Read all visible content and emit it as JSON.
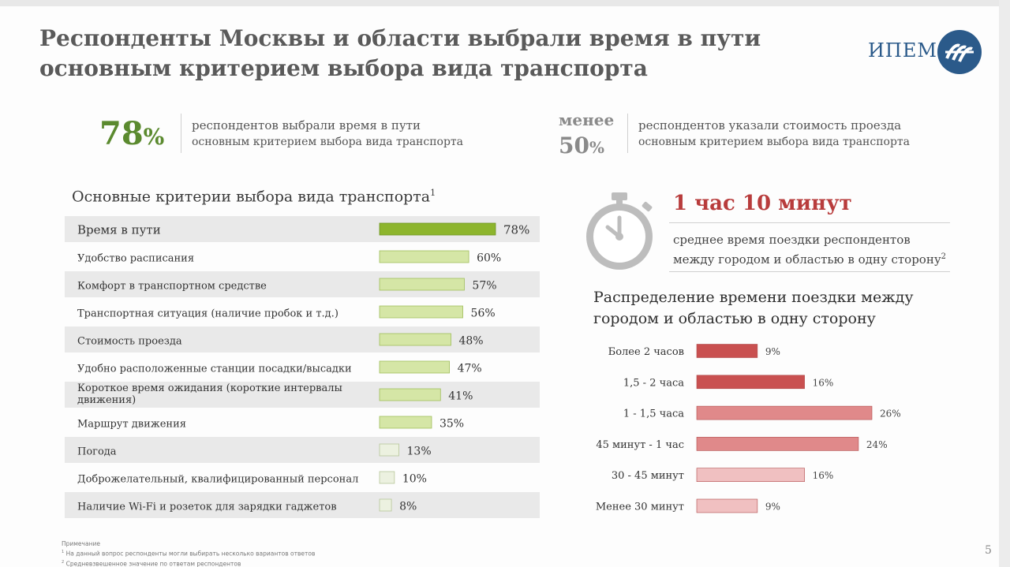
{
  "title": {
    "line1": "Респонденты Москвы и области выбрали время в пути",
    "line2": "основным критерием выбора вида транспорта"
  },
  "logo": {
    "text": "ИПЕМ"
  },
  "kpi1": {
    "value": "78",
    "unit": "%",
    "text_line1": "респондентов выбрали время в пути",
    "text_line2": "основным критерием выбора вида транспорта"
  },
  "kpi2": {
    "prefix": "менее",
    "value": "50",
    "unit": "%",
    "text_line1": "респондентов указали стоимость проезда",
    "text_line2": "основным критерием выбора вида транспорта"
  },
  "left_chart_title": {
    "text": "Основные критерии выбора вида транспорта",
    "sup": "1"
  },
  "travel_time": {
    "value": "1 час 10 минут",
    "desc_line1": "среднее время поездки респондентов",
    "desc_line2": "между городом и областью в одну сторону",
    "desc_sup": "2"
  },
  "right_chart_title": {
    "line1": "Распределение времени поездки между",
    "line2": "городом и областью в одну сторону"
  },
  "chart_data": [
    {
      "type": "bar",
      "orientation": "horizontal",
      "title": "Основные критерии выбора вида транспорта",
      "categories": [
        "Время в пути",
        "Удобство расписания",
        "Комфорт в транспортном средстве",
        "Транспортная ситуация (наличие пробок и т.д.)",
        "Стоимость проезда",
        "Удобно расположенные станции посадки/высадки",
        "Короткое время ожидания (короткие интервалы|движения)",
        "Маршрут движения",
        "Погода",
        "Доброжелательный, квалифицированный персонал",
        "Наличие Wi-Fi и розеток для зарядки гаджетов"
      ],
      "values": [
        78,
        60,
        57,
        56,
        48,
        47,
        41,
        35,
        13,
        10,
        8
      ],
      "labels": [
        "78%",
        "60%",
        "57%",
        "56%",
        "48%",
        "47%",
        "41%",
        "35%",
        "13%",
        "10%",
        "8%"
      ],
      "xlim": [
        0,
        100
      ],
      "highlight_color": "#8db52d",
      "bar_color": "#d5e6a6",
      "pale_color": "#ecf1e0",
      "stripe_color": "#e9e9e9"
    },
    {
      "type": "bar",
      "orientation": "horizontal",
      "title": "Распределение времени поездки между городом и областью в одну сторону",
      "categories": [
        "Более 2 часов",
        "1,5 - 2 часа",
        "1 - 1,5 часа",
        "45 минут - 1 час",
        "30 - 45 минут",
        "Менее 30 минут"
      ],
      "values": [
        9,
        16,
        26,
        24,
        16,
        9
      ],
      "labels": [
        "9%",
        "16%",
        "26%",
        "24%",
        "16%",
        "9%"
      ],
      "xlim": [
        0,
        30
      ],
      "colors": [
        "#c95050",
        "#c95050",
        "#e0898a",
        "#e0898a",
        "#f0c0c1",
        "#f0c0c1"
      ]
    }
  ],
  "notes": {
    "header": "Примечание",
    "note1_sup": "1",
    "note1": "На данный вопрос респонденты могли выбирать несколько вариантов ответов",
    "note2_sup": "2",
    "note2": "Средневзвешенное значение по ответам респондентов"
  },
  "page_number": "5"
}
